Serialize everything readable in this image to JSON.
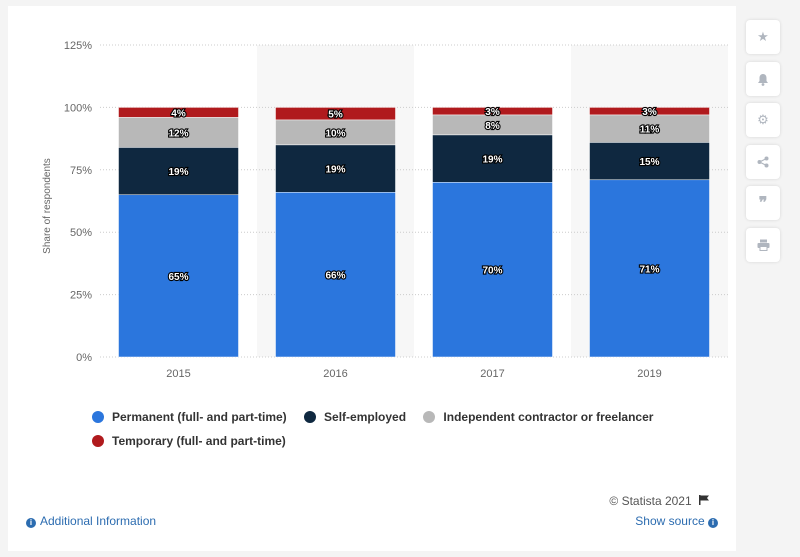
{
  "chart_data": {
    "type": "bar",
    "stacked": true,
    "categories": [
      "2015",
      "2016",
      "2017",
      "2019"
    ],
    "series": [
      {
        "name": "Permanent (full- and part-time)",
        "color": "#2b76dd",
        "values": [
          65,
          66,
          70,
          71
        ],
        "labels": [
          "65%",
          "66%",
          "70%",
          "71%"
        ]
      },
      {
        "name": "Self-employed",
        "color": "#0f2840",
        "values": [
          19,
          19,
          19,
          15
        ],
        "labels": [
          "19%",
          "19%",
          "19%",
          "15%"
        ]
      },
      {
        "name": "Independent contractor or freelancer",
        "color": "#b8b8b8",
        "values": [
          12,
          10,
          8,
          11
        ],
        "labels": [
          "12%",
          "10%",
          "8%",
          "11%"
        ]
      },
      {
        "name": "Temporary (full- and part-time)",
        "color": "#b01a1d",
        "values": [
          4,
          5,
          3,
          3
        ],
        "labels": [
          "4%",
          "5%",
          "3%",
          "3%"
        ]
      }
    ],
    "ylabel": "Share of respondents",
    "ylim": [
      0,
      125
    ],
    "yticks": [
      "0%",
      "25%",
      "50%",
      "75%",
      "100%",
      "125%"
    ],
    "grid": true,
    "legend_position": "bottom"
  },
  "credit": "© Statista 2021",
  "footer": {
    "additional_info": "Additional Information",
    "show_source": "Show source"
  },
  "sidebar": {
    "icons": [
      "star-icon",
      "bell-icon",
      "gear-icon",
      "share-icon",
      "quote-icon",
      "print-icon"
    ]
  }
}
